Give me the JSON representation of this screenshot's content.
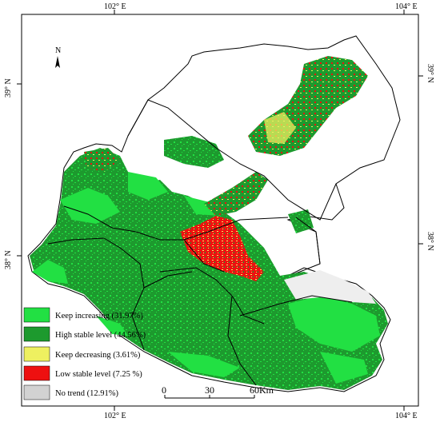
{
  "map": {
    "graticule": {
      "top_labels": [
        "102° E",
        "104° E"
      ],
      "bottom_labels": [
        "102° E",
        "104° E"
      ],
      "left_labels": [
        "39° N",
        "38° N"
      ],
      "right_labels": [
        "39° N",
        "38° N"
      ]
    },
    "north_arrow": {
      "label": "N"
    },
    "legend": {
      "items": [
        {
          "label": "Keep increasing (31.97%)",
          "color": "#22e043"
        },
        {
          "label": "High stable level (44.56%)",
          "color": "#1d9a2e"
        },
        {
          "label": "Keep decreasing (3.61%)",
          "color": "#eef060"
        },
        {
          "label": "Low stable level (7.25 %)",
          "color": "#ee1010"
        },
        {
          "label": "No trend (12.91%)",
          "color": "#d2d2d2"
        }
      ]
    },
    "scale_bar": {
      "labels": [
        "0",
        "30",
        "60Km"
      ]
    },
    "colors": {
      "keep_increasing": "#22e043",
      "high_stable": "#1d9a2e",
      "keep_decreasing": "#eef060",
      "low_stable": "#ee1010",
      "no_trend": "#d2d2d2",
      "boundary": "#000000"
    }
  }
}
